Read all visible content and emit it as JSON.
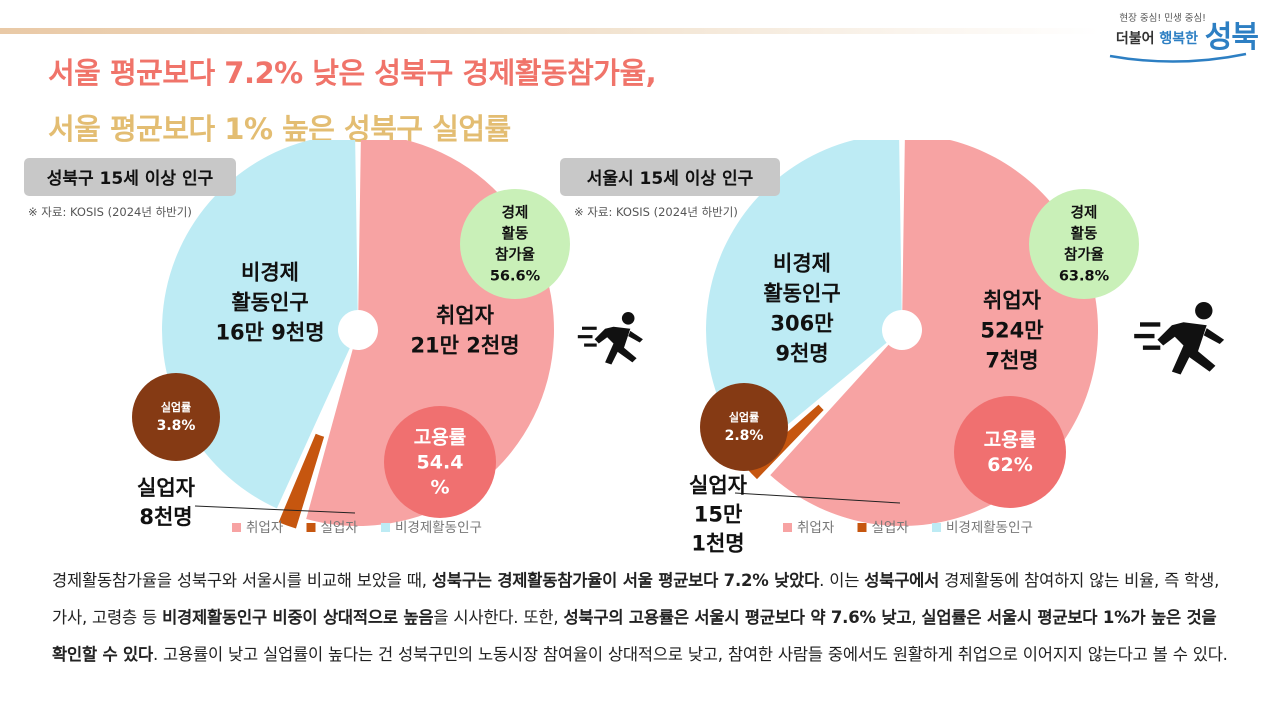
{
  "logo": {
    "slogan": "현장 중심! 민생 중심!",
    "line2_prefix": "더불어",
    "line2_highlight": "행복한",
    "brand": "성북"
  },
  "headline": {
    "line1": "서울 평균보다 7.2% 낮은 성북구 경제활동참가율,",
    "line2": "서울 평균보다 1% 높은 성북구 실업률"
  },
  "colors": {
    "employed": "#f7a3a3",
    "unemployed": "#c6560f",
    "inactive": "#bdebf4",
    "participation_circle": "#c9f0b8",
    "employment_circle": "#f07070",
    "unemployment_circle": "#853a14",
    "headline1": "#f0746a",
    "headline2": "#e3bd72",
    "brand": "#2d7fc3"
  },
  "chart_data": [
    {
      "type": "pie",
      "title": "성북구 15세 이상 인구",
      "source": "※ 자료: KOSIS (2024년 하반기)",
      "series": [
        {
          "name": "취업자",
          "value": 212,
          "label": [
            "취업자",
            "21만 2천명"
          ]
        },
        {
          "name": "실업자",
          "value": 8,
          "label": [
            "실업자",
            "8천명"
          ]
        },
        {
          "name": "비경제활동인구",
          "value": 169,
          "label": [
            "비경제",
            "활동인구",
            "16만 9천명"
          ]
        }
      ],
      "value_unit": "천명",
      "participation_rate": {
        "value": 56.6,
        "label": [
          "경제",
          "활동",
          "참가율",
          "56.6%"
        ]
      },
      "employment_rate": {
        "value": 54.4,
        "label": [
          "고용률",
          "54.4",
          "%"
        ]
      },
      "unemployment_rate": {
        "value": 3.8,
        "label": [
          "실업률",
          "3.8%"
        ]
      },
      "legend": [
        "취업자",
        "실업자",
        "비경제활동인구"
      ],
      "legend_position": "bottom"
    },
    {
      "type": "pie",
      "title": "서울시 15세 이상 인구",
      "source": "※ 자료: KOSIS (2024년 하반기)",
      "series": [
        {
          "name": "취업자",
          "value": 5247,
          "label": [
            "취업자",
            "524만",
            "7천명"
          ]
        },
        {
          "name": "실업자",
          "value": 151,
          "label": [
            "실업자",
            "15만",
            "1천명"
          ]
        },
        {
          "name": "비경제활동인구",
          "value": 3069,
          "label": [
            "비경제",
            "활동인구",
            "306만",
            "9천명"
          ]
        }
      ],
      "value_unit": "천명",
      "participation_rate": {
        "value": 63.8,
        "label": [
          "경제",
          "활동",
          "참가율",
          "63.8%"
        ]
      },
      "employment_rate": {
        "value": 62,
        "label": [
          "고용률",
          "62%"
        ]
      },
      "unemployment_rate": {
        "value": 2.8,
        "label": [
          "실업률",
          "2.8%"
        ]
      },
      "legend": [
        "취업자",
        "실업자",
        "비경제활동인구"
      ],
      "legend_position": "bottom"
    }
  ],
  "paragraph": [
    {
      "t": "경제활동참가율을 성북구와 서울시를 비교해 보았을 때, ",
      "b": false
    },
    {
      "t": "성북구는 경제활동참가율이 서울 평균보다 7.2% 낮았다",
      "b": true
    },
    {
      "t": ". 이는 ",
      "b": false
    },
    {
      "t": "성북구에서",
      "b": true
    },
    {
      "t": " 경제활동에 참여하지 않는 비율, 즉 학생, 가사, 고령층 등 ",
      "b": false
    },
    {
      "t": "비경제활동인구 비중이 상대적으로 높음",
      "b": true
    },
    {
      "t": "을 시사한다. 또한, ",
      "b": false
    },
    {
      "t": "성북구의 고용률은 서울시 평균보다 약 7.6% 낮고",
      "b": true
    },
    {
      "t": ", ",
      "b": false
    },
    {
      "t": "실업률은 서울시 평균보다 1%가 높은 것을 확인할 수 있다",
      "b": true
    },
    {
      "t": ". 고용률이 낮고 실업률이 높다는 건 성북구민의 노동시장 참여율이 상대적으로 낮고, 참여한 사람들 중에서도 원활하게 취업으로 이어지지 않는다고 볼 수 있다.",
      "b": false
    }
  ]
}
